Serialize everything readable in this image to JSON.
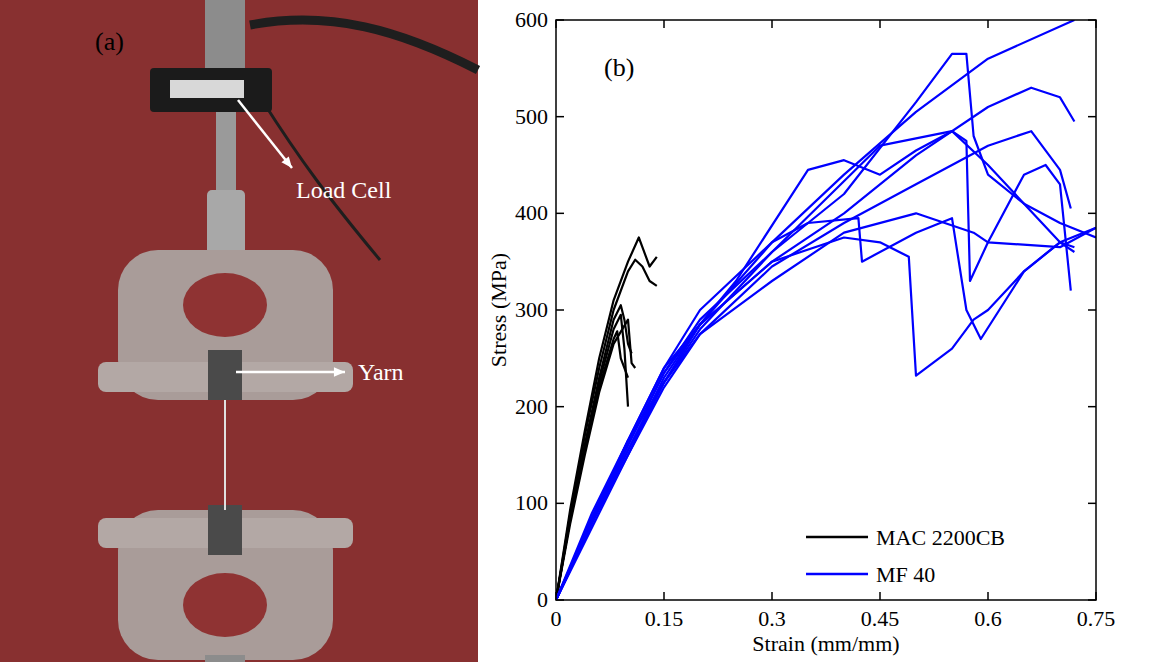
{
  "photo": {
    "panel_label": "(a)",
    "annotations": [
      "Load Cell",
      "Yarn"
    ]
  },
  "chart_data": {
    "type": "line",
    "panel_label": "(b)",
    "x_label": "Strain (mm/mm)",
    "y_label": "Stress (MPa)",
    "xlim": [
      0,
      0.75
    ],
    "ylim": [
      0,
      600
    ],
    "xticks": [
      0,
      0.15,
      0.3,
      0.45,
      0.6,
      0.75
    ],
    "yticks": [
      0,
      100,
      200,
      300,
      400,
      500,
      600
    ],
    "grid": false,
    "legend": "lower right",
    "series": [
      {
        "name": "MAC 2200CB",
        "color": "#000000",
        "specimens": [
          {
            "x": [
              0,
              0.02,
              0.04,
              0.06,
              0.08,
              0.1,
              0.115,
              0.12,
              0.13,
              0.14
            ],
            "values": [
              0,
              95,
              175,
              250,
              310,
              350,
              375,
              365,
              345,
              355
            ]
          },
          {
            "x": [
              0,
              0.02,
              0.04,
              0.06,
              0.08,
              0.1,
              0.11,
              0.12,
              0.13,
              0.14
            ],
            "values": [
              0,
              90,
              170,
              240,
              300,
              340,
              352,
              345,
              330,
              325
            ]
          },
          {
            "x": [
              0,
              0.02,
              0.04,
              0.06,
              0.08,
              0.09,
              0.095,
              0.1,
              0.105
            ],
            "values": [
              0,
              85,
              160,
              230,
              290,
              305,
              290,
              265,
              255
            ]
          },
          {
            "x": [
              0,
              0.02,
              0.04,
              0.06,
              0.08,
              0.09,
              0.095,
              0.1
            ],
            "values": [
              0,
              85,
              160,
              225,
              280,
              295,
              260,
              200
            ]
          },
          {
            "x": [
              0,
              0.02,
              0.04,
              0.06,
              0.08,
              0.085,
              0.09,
              0.1
            ],
            "values": [
              0,
              85,
              155,
              220,
              270,
              278,
              250,
              230
            ]
          },
          {
            "x": [
              0,
              0.02,
              0.04,
              0.06,
              0.08,
              0.1,
              0.105,
              0.11
            ],
            "values": [
              0,
              80,
              150,
              215,
              265,
              290,
              245,
              240
            ]
          }
        ]
      },
      {
        "name": "MF 40",
        "color": "#0000ff",
        "specimens": [
          {
            "x": [
              0,
              0.05,
              0.1,
              0.15,
              0.2,
              0.3,
              0.4,
              0.5,
              0.6,
              0.72
            ],
            "values": [
              0,
              90,
              165,
              225,
              285,
              370,
              440,
              505,
              560,
              600
            ]
          },
          {
            "x": [
              0,
              0.05,
              0.1,
              0.15,
              0.2,
              0.3,
              0.4,
              0.5,
              0.55,
              0.57,
              0.58,
              0.6,
              0.65,
              0.7,
              0.72
            ],
            "values": [
              0,
              85,
              160,
              235,
              290,
              360,
              420,
              515,
              565,
              565,
              480,
              440,
              410,
              370,
              360
            ]
          },
          {
            "x": [
              0,
              0.05,
              0.1,
              0.15,
              0.2,
              0.3,
              0.4,
              0.5,
              0.6,
              0.66,
              0.7,
              0.72
            ],
            "values": [
              0,
              80,
              155,
              230,
              285,
              350,
              400,
              460,
              510,
              530,
              520,
              495
            ]
          },
          {
            "x": [
              0,
              0.05,
              0.1,
              0.15,
              0.25,
              0.35,
              0.4,
              0.45,
              0.5,
              0.55,
              0.6,
              0.65,
              0.7,
              0.75
            ],
            "values": [
              0,
              85,
              165,
              240,
              330,
              445,
              455,
              440,
              465,
              485,
              450,
              410,
              390,
              375
            ]
          },
          {
            "x": [
              0,
              0.05,
              0.1,
              0.15,
              0.2,
              0.3,
              0.4,
              0.45,
              0.49,
              0.5,
              0.55,
              0.58,
              0.6,
              0.65,
              0.7,
              0.72
            ],
            "values": [
              0,
              80,
              160,
              235,
              285,
              350,
              375,
              370,
              355,
              232,
              260,
              290,
              300,
              340,
              370,
              365
            ]
          },
          {
            "x": [
              0,
              0.05,
              0.1,
              0.15,
              0.2,
              0.3,
              0.45,
              0.55,
              0.57,
              0.575,
              0.6,
              0.65,
              0.68,
              0.7,
              0.715
            ],
            "values": [
              0,
              75,
              150,
              225,
              280,
              360,
              470,
              485,
              475,
              330,
              370,
              440,
              450,
              430,
              320
            ]
          },
          {
            "x": [
              0,
              0.05,
              0.1,
              0.15,
              0.2,
              0.3,
              0.4,
              0.5,
              0.58,
              0.6,
              0.7,
              0.75
            ],
            "values": [
              0,
              80,
              155,
              225,
              275,
              330,
              380,
              400,
              380,
              370,
              365,
              385
            ]
          },
          {
            "x": [
              0,
              0.05,
              0.1,
              0.15,
              0.2,
              0.3,
              0.4,
              0.5,
              0.6,
              0.66,
              0.7,
              0.715
            ],
            "values": [
              0,
              80,
              150,
              220,
              275,
              345,
              390,
              430,
              470,
              485,
              445,
              405
            ]
          },
          {
            "x": [
              0,
              0.05,
              0.1,
              0.15,
              0.2,
              0.3,
              0.35,
              0.42,
              0.425,
              0.5,
              0.55,
              0.57,
              0.59,
              0.65,
              0.7,
              0.75
            ],
            "values": [
              0,
              85,
              165,
              240,
              300,
              370,
              390,
              395,
              350,
              380,
              395,
              300,
              270,
              340,
              370,
              385
            ]
          }
        ]
      }
    ]
  }
}
